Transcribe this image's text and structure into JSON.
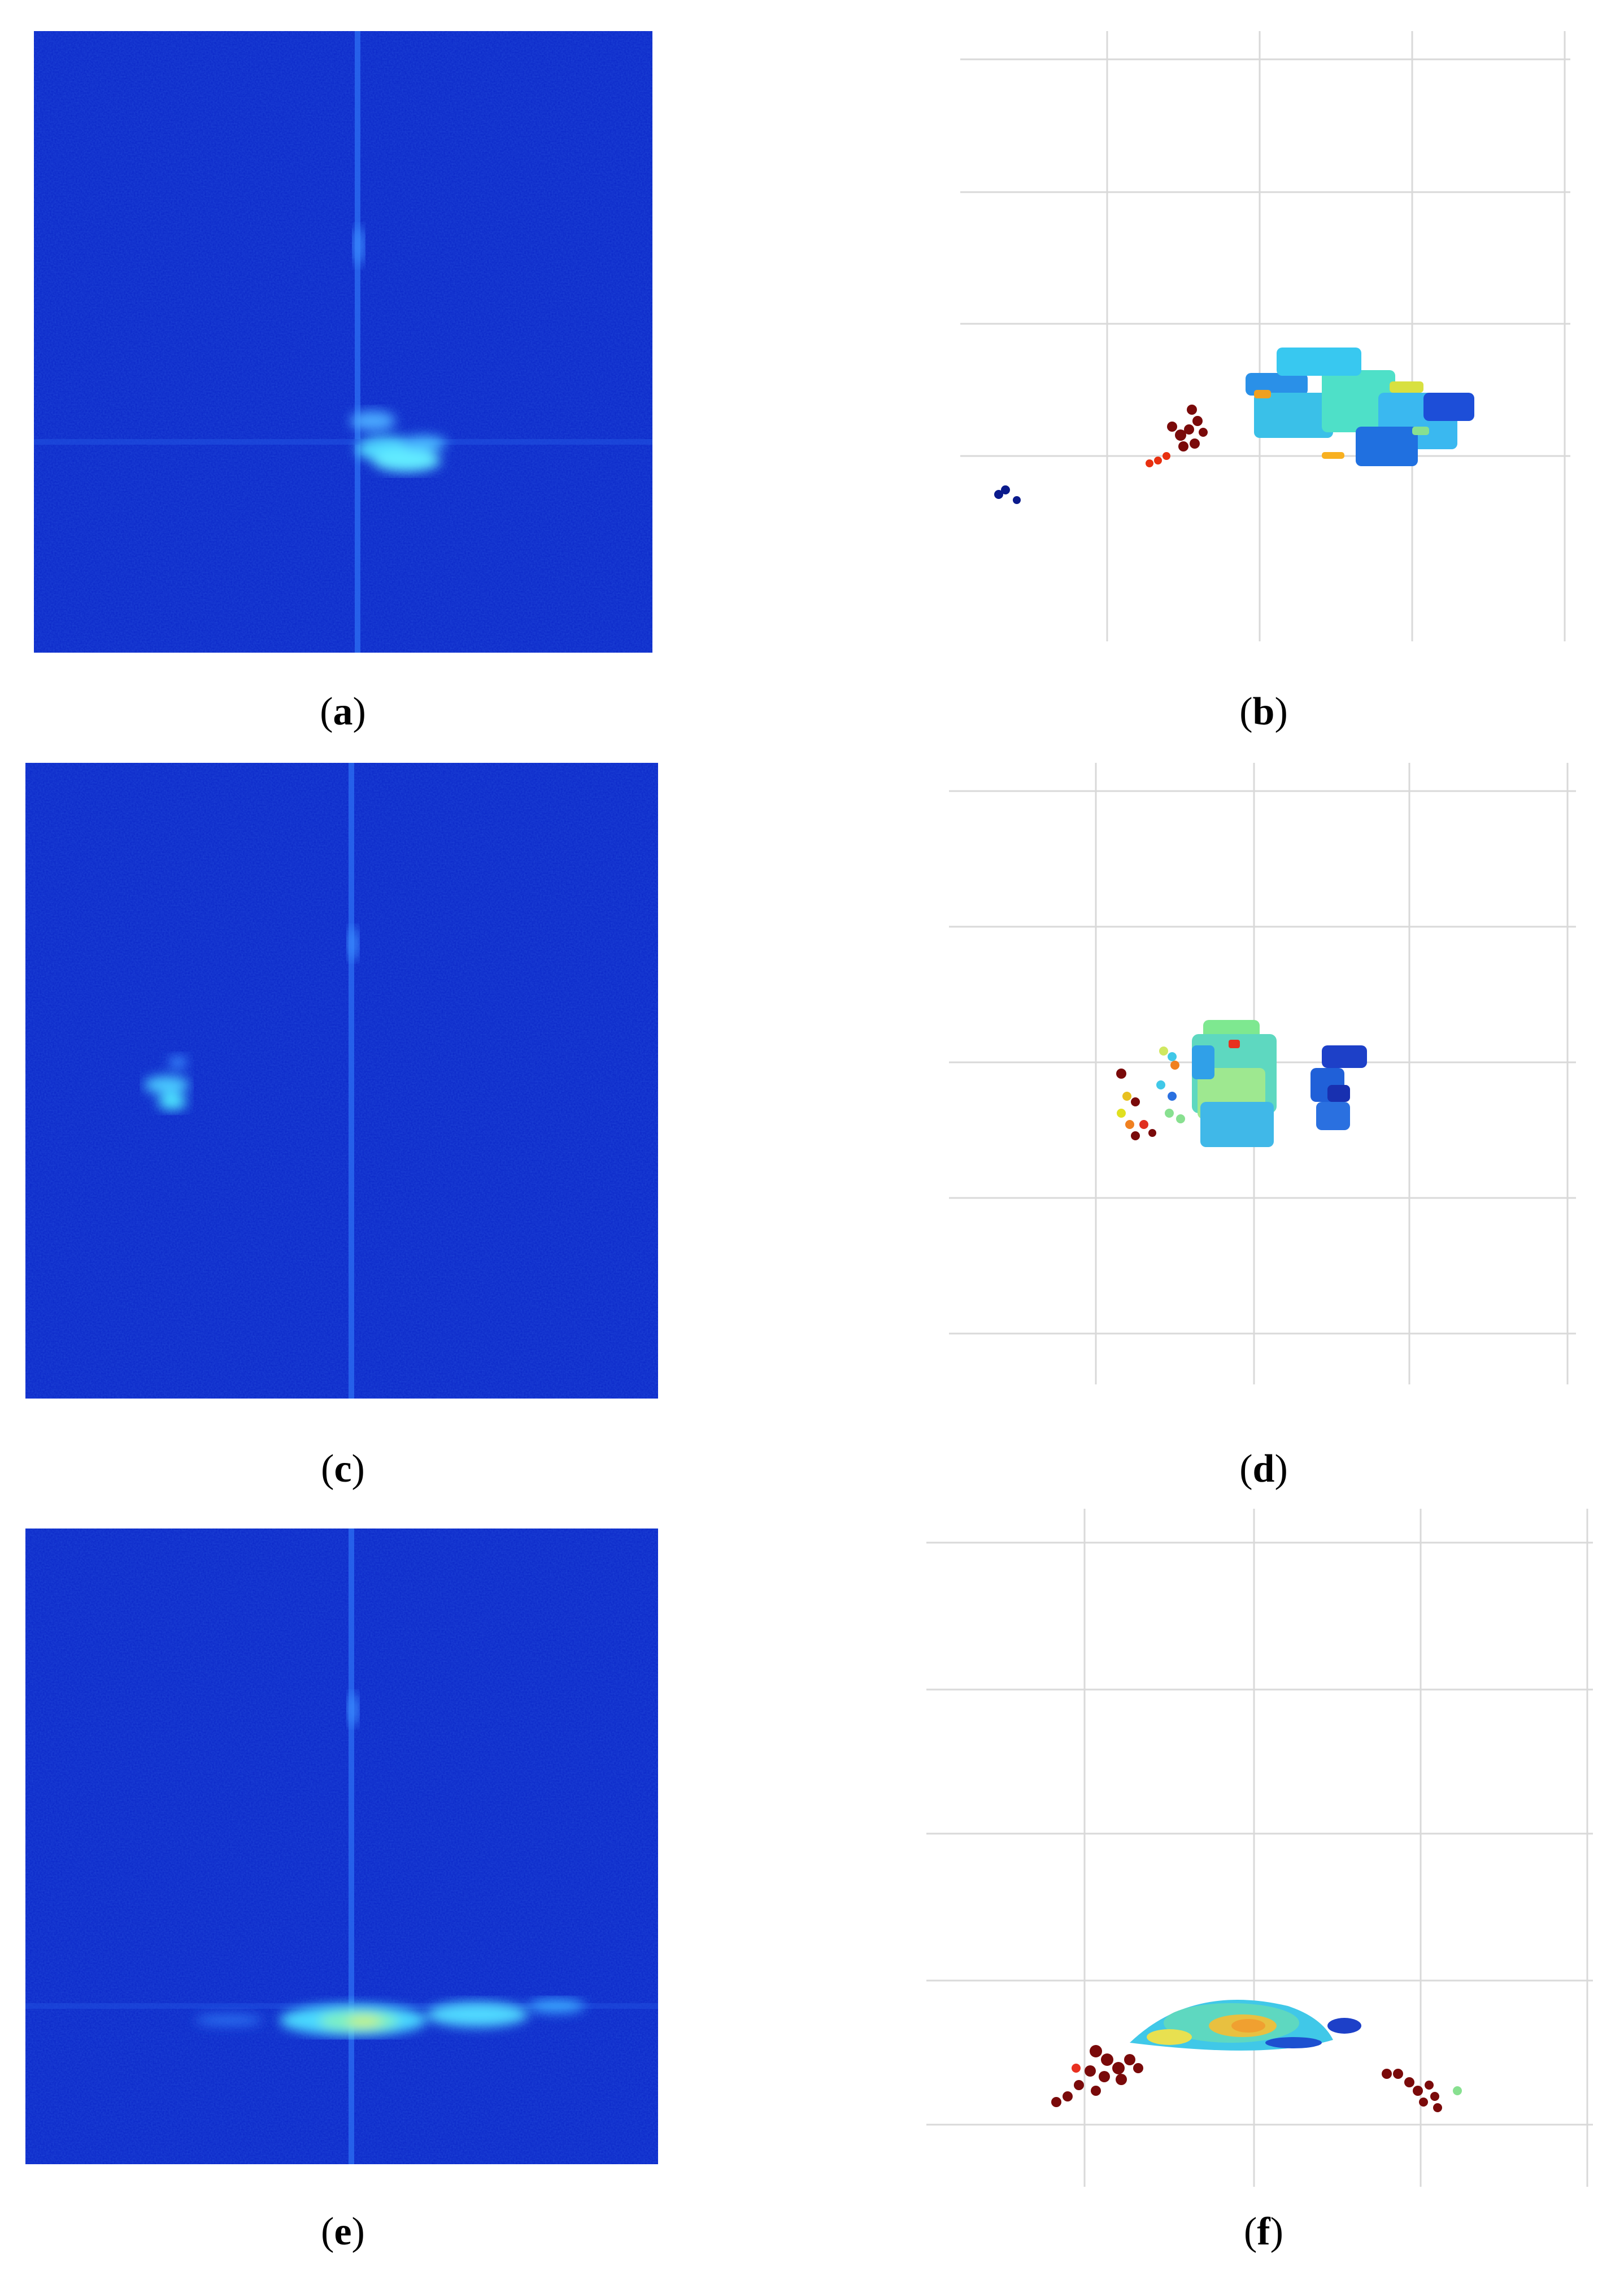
{
  "figure": {
    "panels": [
      {
        "id": "a",
        "kind": "range-doppler-heatmap",
        "caption_open": "(",
        "caption_letter": "a",
        "caption_close": ")"
      },
      {
        "id": "b",
        "kind": "point-cloud",
        "caption_open": "(",
        "caption_letter": "b",
        "caption_close": ")"
      },
      {
        "id": "c",
        "kind": "range-doppler-heatmap",
        "caption_open": "(",
        "caption_letter": "c",
        "caption_close": ")"
      },
      {
        "id": "d",
        "kind": "point-cloud",
        "caption_open": "(",
        "caption_letter": "d",
        "caption_close": ")"
      },
      {
        "id": "e",
        "kind": "range-doppler-heatmap",
        "caption_open": "(",
        "caption_letter": "e",
        "caption_close": ")"
      },
      {
        "id": "f",
        "kind": "point-cloud",
        "caption_open": "(",
        "caption_letter": "f",
        "caption_close": ")"
      }
    ],
    "colormap": "jet",
    "colors": {
      "heatmap_background": "#0a26c8",
      "grid_line": "#d9d9d9",
      "point_dark_red": "#7a0a0a",
      "point_navy": "#0a1a8c",
      "point_cyan": "#33d0e0"
    }
  }
}
